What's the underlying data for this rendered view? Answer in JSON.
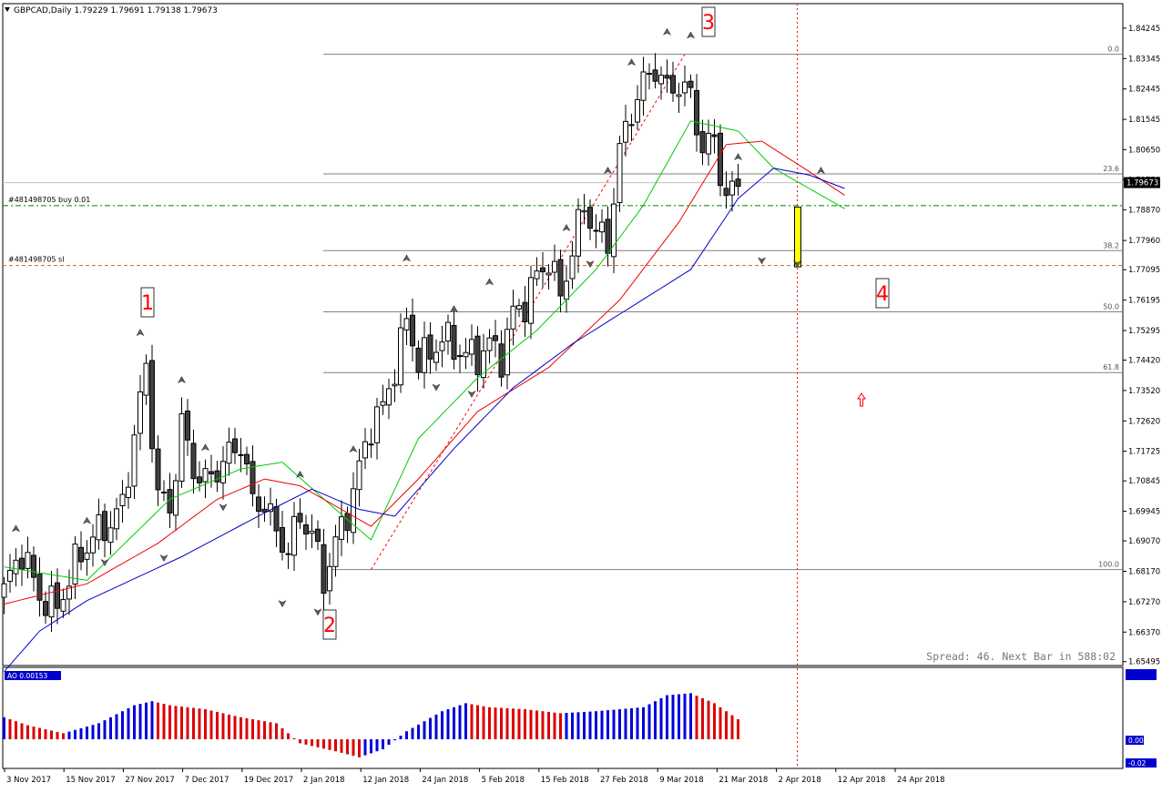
{
  "window": {
    "symbol_line": "GBPCAD,Daily  1.79229 1.79691 1.79138 1.79673",
    "menu_icon": "triangle-down-icon"
  },
  "chart_data": {
    "type": "candlestick",
    "symbol": "GBPCAD",
    "timeframe": "Daily",
    "ohlc_header": {
      "open": 1.79229,
      "high": 1.79691,
      "low": 1.79138,
      "close": 1.79673
    },
    "ylim": [
      1.6538,
      1.8497
    ],
    "y_ticks": [
      "1.84245",
      "1.83345",
      "1.82445",
      "1.81545",
      "1.80650",
      "1.79750",
      "1.78870",
      "1.77960",
      "1.77095",
      "1.76195",
      "1.75295",
      "1.74420",
      "1.73520",
      "1.72620",
      "1.71725",
      "1.70845",
      "1.69945",
      "1.69070",
      "1.68170",
      "1.67270",
      "1.66370",
      "1.65495"
    ],
    "current_price": "1.79673",
    "x_ticks": [
      "3 Nov 2017",
      "15 Nov 2017",
      "27 Nov 2017",
      "7 Dec 2017",
      "19 Dec 2017",
      "2 Jan 2018",
      "12 Jan 2018",
      "24 Jan 2018",
      "5 Feb 2018",
      "15 Feb 2018",
      "27 Feb 2018",
      "9 Mar 2018",
      "21 Mar 2018",
      "2 Apr 2018",
      "12 Apr 2018",
      "24 Apr 2018"
    ],
    "bar_count": 125,
    "anchors": [
      [
        0,
        1.676
      ],
      [
        3,
        1.688
      ],
      [
        6,
        1.674
      ],
      [
        9,
        1.671
      ],
      [
        12,
        1.684
      ],
      [
        15,
        1.692
      ],
      [
        18,
        1.696
      ],
      [
        20,
        1.701
      ],
      [
        22,
        1.722
      ],
      [
        24,
        1.742
      ],
      [
        26,
        1.704
      ],
      [
        28,
        1.7
      ],
      [
        30,
        1.725
      ],
      [
        32,
        1.712
      ],
      [
        34,
        1.708
      ],
      [
        36,
        1.712
      ],
      [
        38,
        1.716
      ],
      [
        40,
        1.72
      ],
      [
        42,
        1.702
      ],
      [
        44,
        1.702
      ],
      [
        46,
        1.693
      ],
      [
        48,
        1.688
      ],
      [
        50,
        1.698
      ],
      [
        52,
        1.693
      ],
      [
        54,
        1.679
      ],
      [
        56,
        1.69
      ],
      [
        58,
        1.699
      ],
      [
        60,
        1.712
      ],
      [
        62,
        1.725
      ],
      [
        64,
        1.73
      ],
      [
        66,
        1.742
      ],
      [
        68,
        1.756
      ],
      [
        70,
        1.744
      ],
      [
        72,
        1.746
      ],
      [
        74,
        1.751
      ],
      [
        76,
        1.748
      ],
      [
        78,
        1.746
      ],
      [
        80,
        1.745
      ],
      [
        82,
        1.749
      ],
      [
        84,
        1.745
      ],
      [
        86,
        1.758
      ],
      [
        88,
        1.761
      ],
      [
        90,
        1.769
      ],
      [
        92,
        1.774
      ],
      [
        94,
        1.763
      ],
      [
        96,
        1.777
      ],
      [
        98,
        1.79
      ],
      [
        100,
        1.782
      ],
      [
        102,
        1.779
      ],
      [
        104,
        1.806
      ],
      [
        106,
        1.818
      ],
      [
        108,
        1.826
      ],
      [
        110,
        1.831
      ],
      [
        112,
        1.824
      ],
      [
        114,
        1.826
      ],
      [
        116,
        1.822
      ],
      [
        118,
        1.807
      ],
      [
        120,
        1.809
      ],
      [
        122,
        1.792
      ],
      [
        124,
        1.796
      ],
      [
        126,
        1.787
      ],
      [
        128,
        1.783
      ],
      [
        130,
        1.796
      ],
      [
        132,
        1.799
      ],
      [
        134,
        1.792
      ],
      [
        136,
        1.784
      ],
      [
        138,
        1.787
      ],
      [
        140,
        1.797
      ]
    ],
    "series": [
      {
        "name": "fast MA",
        "color": "#00cc00",
        "anchors": [
          [
            0,
            1.683
          ],
          [
            14,
            1.679
          ],
          [
            28,
            1.703
          ],
          [
            40,
            1.712
          ],
          [
            47,
            1.714
          ],
          [
            56,
            1.7
          ],
          [
            62,
            1.691
          ],
          [
            70,
            1.721
          ],
          [
            80,
            1.739
          ],
          [
            90,
            1.753
          ],
          [
            100,
            1.771
          ],
          [
            108,
            1.79
          ],
          [
            116,
            1.815
          ],
          [
            124,
            1.812
          ],
          [
            130,
            1.801
          ],
          [
            136,
            1.795
          ],
          [
            142,
            1.789
          ]
        ]
      },
      {
        "name": "medium MA",
        "color": "#ee0000",
        "anchors": [
          [
            0,
            1.672
          ],
          [
            14,
            1.678
          ],
          [
            26,
            1.69
          ],
          [
            36,
            1.703
          ],
          [
            44,
            1.709
          ],
          [
            50,
            1.707
          ],
          [
            58,
            1.699
          ],
          [
            62,
            1.695
          ],
          [
            70,
            1.709
          ],
          [
            80,
            1.729
          ],
          [
            92,
            1.742
          ],
          [
            104,
            1.762
          ],
          [
            114,
            1.785
          ],
          [
            122,
            1.808
          ],
          [
            128,
            1.809
          ],
          [
            136,
            1.8
          ],
          [
            142,
            1.793
          ]
        ]
      },
      {
        "name": "slow MA",
        "color": "#0000cc",
        "anchors": [
          [
            0,
            1.652
          ],
          [
            6,
            1.664
          ],
          [
            14,
            1.673
          ],
          [
            30,
            1.686
          ],
          [
            44,
            1.699
          ],
          [
            52,
            1.706
          ],
          [
            60,
            1.7
          ],
          [
            66,
            1.698
          ],
          [
            76,
            1.718
          ],
          [
            86,
            1.736
          ],
          [
            96,
            1.749
          ],
          [
            106,
            1.76
          ],
          [
            116,
            1.771
          ],
          [
            124,
            1.792
          ],
          [
            130,
            1.801
          ],
          [
            136,
            1.799
          ],
          [
            142,
            1.795
          ]
        ]
      }
    ],
    "fibonacci": {
      "line_color": "#808080",
      "levels": [
        {
          "label": "0.0",
          "price": 1.8347
        },
        {
          "label": "23.6",
          "price": 1.7993
        },
        {
          "label": "38.2",
          "price": 1.7766
        },
        {
          "label": "50.0",
          "price": 1.7585
        },
        {
          "label": "61.8",
          "price": 1.7405
        },
        {
          "label": "100.0",
          "price": 1.6822
        }
      ]
    },
    "trade_lines": [
      {
        "label": "#481498705 buy 0.01",
        "price": 1.7899,
        "color": "#008000"
      },
      {
        "label": "#481498705 sl",
        "price": 1.7722,
        "color": "#d2691e"
      }
    ],
    "wave_labels": [
      "1",
      "2",
      "3",
      "4"
    ],
    "spread_text": "Spread: 46. Next Bar in 588:02",
    "oscillator": {
      "colors": {
        "up": "#0000dd",
        "down": "#dd0000"
      },
      "labels": [
        "AO 0.00153",
        "0.00",
        "-0.02"
      ],
      "values": [
        [
          0,
          0.55
        ],
        [
          4,
          0.35
        ],
        [
          10,
          0.15
        ],
        [
          16,
          0.4
        ],
        [
          22,
          0.85
        ],
        [
          25,
          0.95
        ],
        [
          28,
          0.85
        ],
        [
          34,
          0.75
        ],
        [
          40,
          0.55
        ],
        [
          46,
          0.4
        ],
        [
          50,
          -0.1
        ],
        [
          56,
          -0.3
        ],
        [
          60,
          -0.45
        ],
        [
          64,
          -0.25
        ],
        [
          68,
          0.2
        ],
        [
          74,
          0.7
        ],
        [
          78,
          0.9
        ],
        [
          82,
          0.8
        ],
        [
          88,
          0.75
        ],
        [
          94,
          0.65
        ],
        [
          100,
          0.7
        ],
        [
          104,
          0.75
        ],
        [
          108,
          0.8
        ],
        [
          112,
          1.1
        ],
        [
          116,
          1.15
        ],
        [
          120,
          0.9
        ],
        [
          124,
          0.5
        ],
        [
          128,
          0.1
        ],
        [
          132,
          -0.15
        ],
        [
          136,
          -0.2
        ],
        [
          140,
          -0.25
        ]
      ]
    }
  }
}
